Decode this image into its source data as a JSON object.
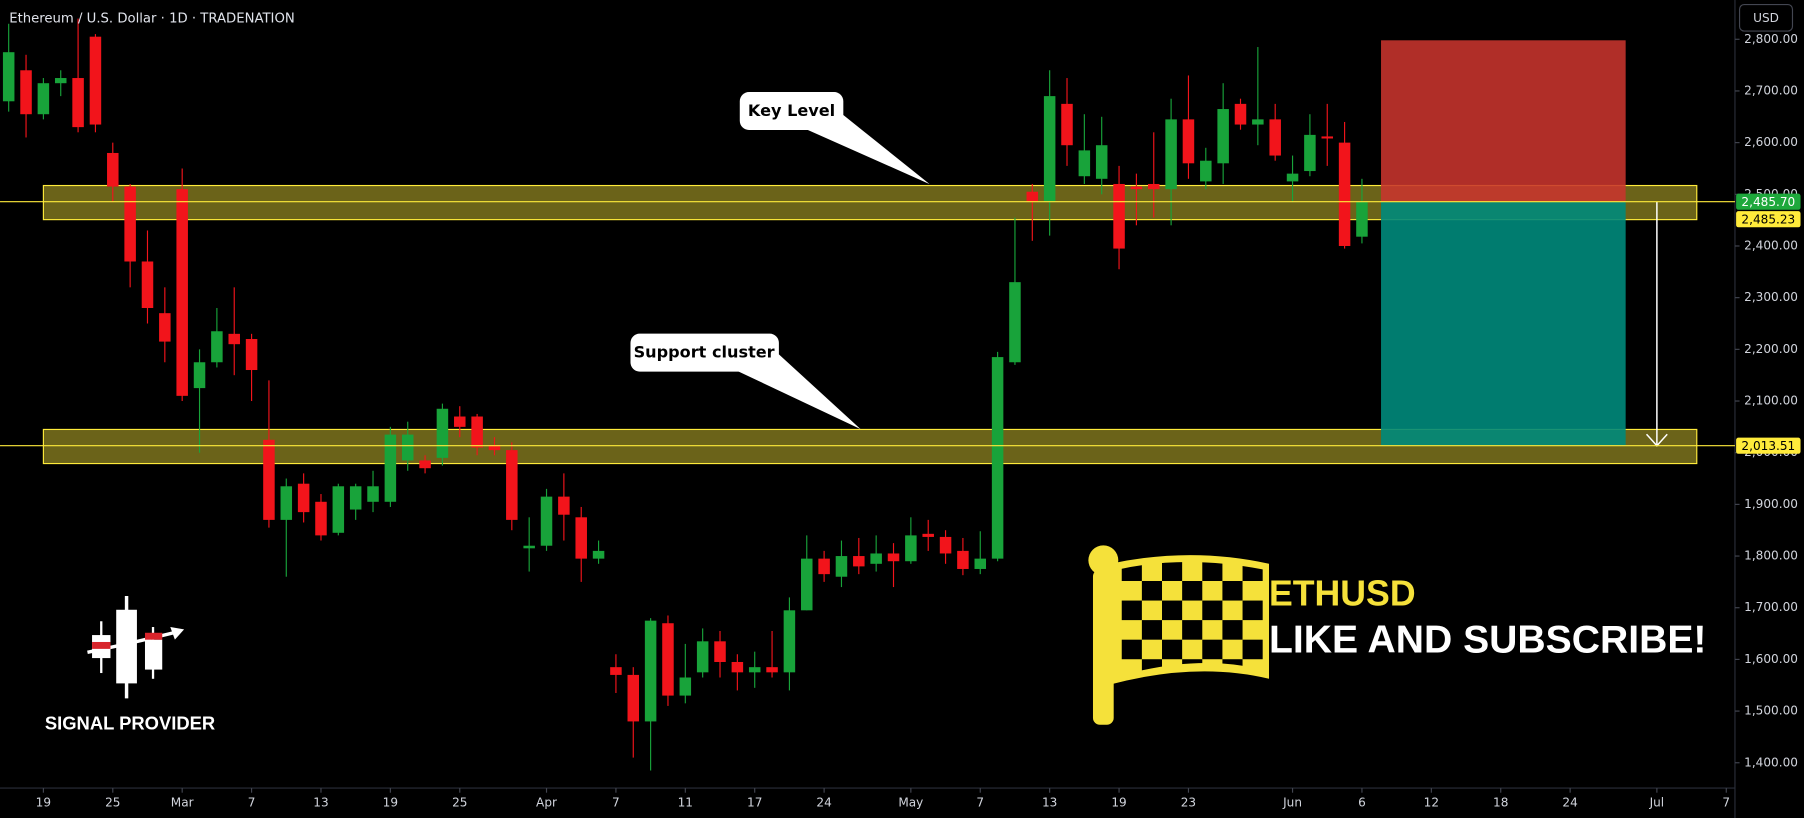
{
  "title": "Ethereum / U.S. Dollar · 1D · TRADENATION",
  "currency": "USD",
  "chart_data": {
    "type": "candlestick",
    "up_color": "#18a33a",
    "down_color": "#f2141b",
    "open": [
      2680,
      2740,
      2655,
      2715,
      2725,
      2805,
      2580,
      2515,
      2370,
      2270,
      2510,
      2125,
      2175,
      2230,
      2220,
      2025,
      1870,
      1940,
      1905,
      1845,
      1890,
      1905,
      1905,
      1985,
      1985,
      1990,
      2070,
      2070,
      2015,
      2005,
      1815,
      1820,
      1915,
      1875,
      1795,
      1585,
      1570,
      1480,
      1670,
      1530,
      1575,
      1635,
      1595,
      1575,
      1585,
      1575,
      1695,
      1795,
      1760,
      1800,
      1785,
      1805,
      1790,
      1843,
      1837,
      1810,
      1775,
      1795,
      2175,
      2505,
      2485,
      2675,
      2535,
      2530,
      2520,
      2515,
      2520,
      2510,
      2645,
      2525,
      2560,
      2675,
      2635,
      2645,
      2525,
      2545,
      2612,
      2600,
      2418
    ],
    "high": [
      2830,
      2770,
      2725,
      2740,
      2840,
      2810,
      2600,
      2520,
      2430,
      2320,
      2550,
      2200,
      2280,
      2320,
      2230,
      2140,
      1950,
      1960,
      1920,
      1940,
      1940,
      1965,
      2050,
      2060,
      1995,
      2095,
      2090,
      2075,
      2030,
      2020,
      1875,
      1930,
      1960,
      1895,
      1830,
      1610,
      1585,
      1680,
      1685,
      1630,
      1660,
      1655,
      1610,
      1615,
      1655,
      1720,
      1840,
      1810,
      1830,
      1835,
      1840,
      1825,
      1875,
      1870,
      1850,
      1835,
      1848,
      2195,
      2455,
      2520,
      2740,
      2725,
      2655,
      2650,
      2555,
      2540,
      2620,
      2685,
      2730,
      2590,
      2715,
      2685,
      2785,
      2675,
      2575,
      2655,
      2675,
      2640,
      2530
    ],
    "low": [
      2660,
      2610,
      2645,
      2690,
      2620,
      2620,
      2485,
      2320,
      2250,
      2175,
      2100,
      2000,
      2165,
      2150,
      2100,
      1855,
      1760,
      1865,
      1830,
      1840,
      1870,
      1885,
      1895,
      1965,
      1960,
      1975,
      2030,
      1995,
      1995,
      1850,
      1770,
      1810,
      1830,
      1750,
      1785,
      1535,
      1410,
      1385,
      1510,
      1515,
      1565,
      1565,
      1540,
      1545,
      1565,
      1540,
      1695,
      1750,
      1740,
      1765,
      1770,
      1740,
      1785,
      1810,
      1785,
      1763,
      1765,
      1790,
      2170,
      2410,
      2420,
      2555,
      2520,
      2500,
      2355,
      2440,
      2455,
      2440,
      2530,
      2510,
      2520,
      2625,
      2595,
      2565,
      2485,
      2535,
      2555,
      2395,
      2405
    ],
    "close": [
      2775,
      2655,
      2715,
      2725,
      2630,
      2635,
      2515,
      2370,
      2280,
      2215,
      2110,
      2175,
      2235,
      2210,
      2160,
      1870,
      1935,
      1885,
      1840,
      1935,
      1935,
      1935,
      2035,
      2035,
      1970,
      2085,
      2050,
      2010,
      2005,
      1870,
      1820,
      1915,
      1880,
      1795,
      1810,
      1570,
      1480,
      1675,
      1530,
      1565,
      1635,
      1595,
      1575,
      1585,
      1575,
      1695,
      1795,
      1765,
      1800,
      1780,
      1805,
      1790,
      1840,
      1837,
      1805,
      1775,
      1795,
      2185,
      2330,
      2485,
      2690,
      2595,
      2585,
      2595,
      2395,
      2510,
      2510,
      2645,
      2560,
      2565,
      2665,
      2635,
      2645,
      2575,
      2540,
      2615,
      2608,
      2400,
      2485.23
    ],
    "xlim": [
      -0.5,
      99.5
    ],
    "xticks": [
      {
        "value": 2,
        "label": "19"
      },
      {
        "value": 6,
        "label": "25"
      },
      {
        "value": 10,
        "label": "Mar"
      },
      {
        "value": 14,
        "label": "7"
      },
      {
        "value": 18,
        "label": "13"
      },
      {
        "value": 22,
        "label": "19"
      },
      {
        "value": 26,
        "label": "25"
      },
      {
        "value": 31,
        "label": "Apr"
      },
      {
        "value": 35,
        "label": "7"
      },
      {
        "value": 39,
        "label": "11"
      },
      {
        "value": 43,
        "label": "17"
      },
      {
        "value": 47,
        "label": "24"
      },
      {
        "value": 52,
        "label": "May"
      },
      {
        "value": 56,
        "label": "7"
      },
      {
        "value": 60,
        "label": "13"
      },
      {
        "value": 64,
        "label": "19"
      },
      {
        "value": 68,
        "label": "23"
      },
      {
        "value": 74,
        "label": "Jun"
      },
      {
        "value": 78,
        "label": "6"
      },
      {
        "value": 82,
        "label": "12"
      },
      {
        "value": 86,
        "label": "18"
      },
      {
        "value": 90,
        "label": "24"
      },
      {
        "value": 95,
        "label": "Jul"
      },
      {
        "value": 99,
        "label": "7"
      }
    ],
    "ylim": [
      1351,
      2876
    ],
    "yticks": [
      {
        "value": 1400,
        "label": "1,400.00"
      },
      {
        "value": 1500,
        "label": "1,500.00"
      },
      {
        "value": 1600,
        "label": "1,600.00"
      },
      {
        "value": 1700,
        "label": "1,700.00"
      },
      {
        "value": 1800,
        "label": "1,800.00"
      },
      {
        "value": 1900,
        "label": "1,900.00"
      },
      {
        "value": 2000,
        "label": "2,000.00"
      },
      {
        "value": 2100,
        "label": "2,100.00"
      },
      {
        "value": 2200,
        "label": "2,200.00"
      },
      {
        "value": 2300,
        "label": "2,300.00"
      },
      {
        "value": 2400,
        "label": "2,400.00"
      },
      {
        "value": 2500,
        "label": "2,500.00"
      },
      {
        "value": 2600,
        "label": "2,600.00"
      },
      {
        "value": 2700,
        "label": "2,700.00"
      },
      {
        "value": 2800,
        "label": "2,800.00"
      }
    ],
    "zones": [
      {
        "from": 2451,
        "to": 2517,
        "start": 2,
        "end": 97.3
      },
      {
        "from": 1979,
        "to": 2045,
        "start": 2,
        "end": 97.3
      }
    ],
    "annotations": [
      "Key Level",
      "Support cluster"
    ],
    "position": {
      "stop": 2798,
      "entry": 2485.7,
      "target": 2013.51,
      "start": 79.1,
      "end": 93.2
    },
    "price_labels": [
      {
        "value": 2485.7,
        "label": "2,485.70",
        "color": "#1ea83c"
      },
      {
        "value": 2485.23,
        "label": "2,485.23",
        "color": "#ffeb3b"
      },
      {
        "value": 2013.51,
        "label": "2,013.51",
        "color": "#ffeb3b"
      }
    ]
  },
  "branding": {
    "logo_text": "SIGNAL PROVIDER",
    "symbol": "ETHUSD",
    "cta": "LIKE AND SUBSCRIBE!"
  }
}
